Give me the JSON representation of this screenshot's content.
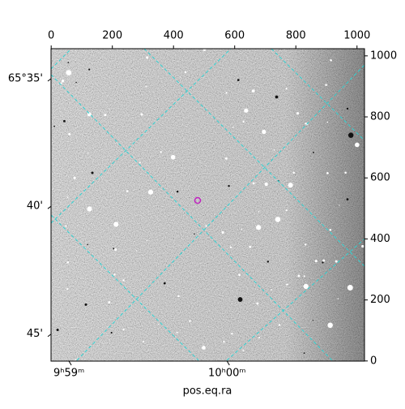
{
  "chart_data": {
    "type": "image",
    "xlabel": "pos.eq.ra",
    "xlim": [
      -0.5,
      1024.5
    ],
    "ylim": [
      -0.5,
      1023.5
    ],
    "xticks": [
      0,
      200,
      400,
      600,
      800,
      1000
    ],
    "yticks": [
      0,
      200,
      400,
      600,
      800,
      1000
    ],
    "ra_ticks": [
      {
        "value": 58,
        "label": "9ʰ59ᵐ"
      },
      {
        "value": 575,
        "label": "10ʰ00ᵐ"
      }
    ],
    "dec_ticks": [
      {
        "value": 925,
        "label": "65°35'"
      },
      {
        "value": 507,
        "label": "40'"
      },
      {
        "value": 88,
        "label": "45'"
      }
    ],
    "grid_color": "#2fd3d3",
    "marker_color": "#c020c0"
  }
}
